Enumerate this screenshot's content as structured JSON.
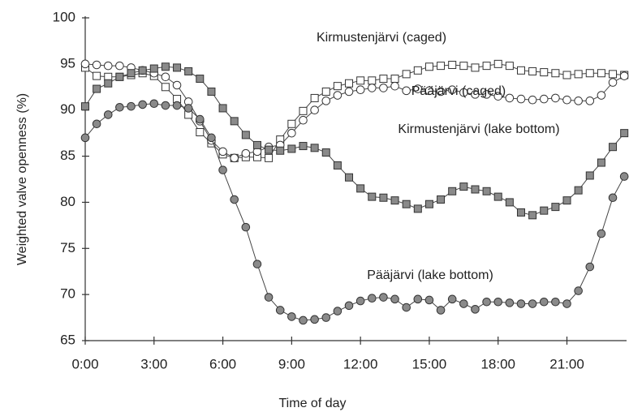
{
  "chart_data": {
    "type": "line",
    "xlabel": "Time of day",
    "ylabel": "Weighted valve openness (%)",
    "x": [
      0,
      0.5,
      1,
      1.5,
      2,
      2.5,
      3,
      3.5,
      4,
      4.5,
      5,
      5.5,
      6,
      6.5,
      7,
      7.5,
      8,
      8.5,
      9,
      9.5,
      10,
      10.5,
      11,
      11.5,
      12,
      12.5,
      13,
      13.5,
      14,
      14.5,
      15,
      15.5,
      16,
      16.5,
      17,
      17.5,
      18,
      18.5,
      19,
      19.5,
      20,
      20.5,
      21,
      21.5,
      22,
      22.5,
      23,
      23.5
    ],
    "xlim": [
      0,
      23.6
    ],
    "xticks": [
      {
        "value": 0,
        "label": "0:00"
      },
      {
        "value": 3,
        "label": "3:00"
      },
      {
        "value": 6,
        "label": "6:00"
      },
      {
        "value": 9,
        "label": "9:00"
      },
      {
        "value": 12,
        "label": "12:00"
      },
      {
        "value": 15,
        "label": "15:00"
      },
      {
        "value": 18,
        "label": "18:00"
      },
      {
        "value": 21,
        "label": "21:00"
      }
    ],
    "ylim": [
      65,
      100
    ],
    "yticks": [
      65,
      70,
      75,
      80,
      85,
      90,
      95,
      100
    ],
    "series": [
      {
        "name": "Kirmustenjärvi (caged)",
        "marker": "square",
        "color": "#ffffff",
        "values": [
          94.6,
          93.7,
          93.6,
          93.6,
          93.8,
          94,
          93.7,
          92.5,
          91.2,
          89.5,
          87.6,
          86.4,
          85.2,
          84.8,
          84.9,
          84.9,
          84.8,
          86.8,
          88.5,
          89.9,
          91.3,
          92,
          92.6,
          92.9,
          93.2,
          93.2,
          93.4,
          93.4,
          93.9,
          94.3,
          94.7,
          94.8,
          94.9,
          94.8,
          94.6,
          94.8,
          95,
          94.8,
          94.3,
          94.2,
          94.1,
          94,
          93.8,
          93.9,
          94,
          94,
          93.9,
          93.8
        ]
      },
      {
        "name": "Pääjärvi (caged)",
        "marker": "circle",
        "color": "#ffffff",
        "values": [
          95,
          94.9,
          94.8,
          94.8,
          94.6,
          94.3,
          94,
          93.6,
          92.7,
          90.9,
          88.8,
          86.7,
          85.5,
          84.8,
          85.3,
          85.5,
          86,
          86.2,
          87.5,
          88.9,
          90,
          91,
          91.6,
          92,
          92.2,
          92.4,
          92.4,
          92.6,
          92.1,
          92.3,
          92.1,
          92,
          92.2,
          91.9,
          91.7,
          91.7,
          91.5,
          91.3,
          91.2,
          91.1,
          91.2,
          91.3,
          91.1,
          91,
          91,
          91.6,
          93,
          93.7
        ]
      },
      {
        "name": "Kirmustenjärvi (lake bottom)",
        "marker": "square",
        "color": "#8a8a8a",
        "values": [
          90.4,
          92.3,
          92.9,
          93.6,
          94,
          94.3,
          94.5,
          94.7,
          94.6,
          94.2,
          93.4,
          92,
          90.2,
          88.8,
          87.3,
          86.2,
          85.7,
          85.6,
          85.8,
          86.1,
          85.9,
          85.4,
          84,
          82.7,
          81.5,
          80.6,
          80.5,
          80.2,
          79.8,
          79.3,
          79.8,
          80.3,
          81.2,
          81.7,
          81.4,
          81.2,
          80.6,
          80,
          78.9,
          78.6,
          79.1,
          79.5,
          80.2,
          81.3,
          82.9,
          84.3,
          86,
          87.5
        ]
      },
      {
        "name": "Pääjärvi (lake bottom)",
        "marker": "circle",
        "color": "#8a8a8a",
        "values": [
          87,
          88.5,
          89.5,
          90.3,
          90.4,
          90.6,
          90.7,
          90.5,
          90.5,
          90.2,
          89,
          87,
          83.5,
          80.3,
          77.3,
          73.3,
          69.7,
          68.3,
          67.6,
          67.2,
          67.3,
          67.5,
          68.2,
          68.8,
          69.3,
          69.6,
          69.7,
          69.5,
          68.6,
          69.5,
          69.4,
          68.3,
          69.5,
          69,
          68.4,
          69.2,
          69.2,
          69.1,
          69,
          69,
          69.2,
          69.2,
          69,
          70.4,
          73,
          76.6,
          80.5,
          82.8
        ]
      }
    ]
  }
}
